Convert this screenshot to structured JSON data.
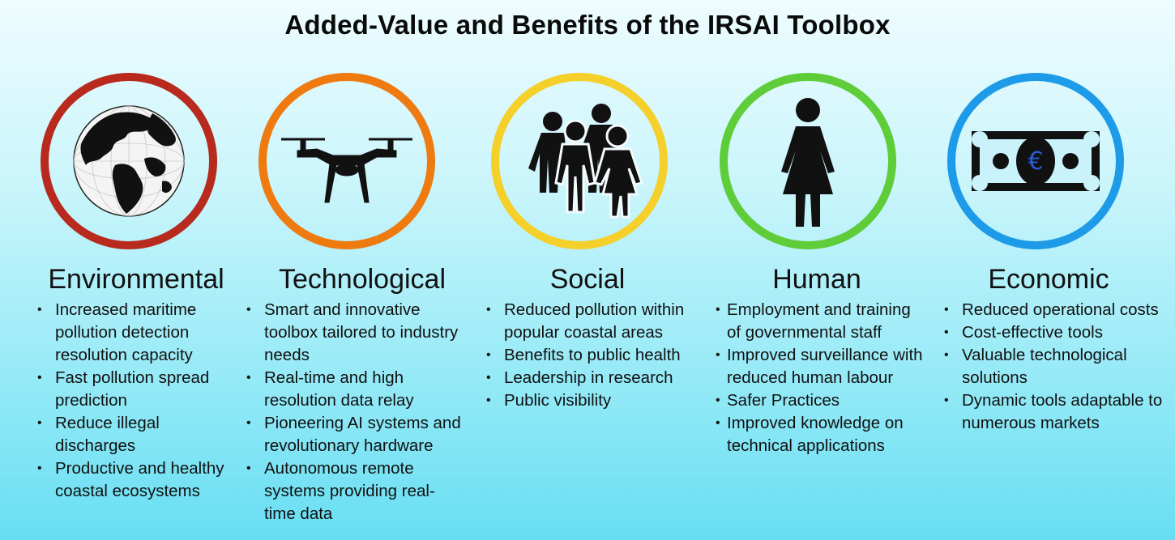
{
  "title": "Added-Value and Benefits of the IRSAI Toolbox",
  "colors": {
    "environmental": "#b82a1e",
    "technological": "#ee7a10",
    "social": "#f5cf2a",
    "human": "#5fcd3a",
    "economic": "#1d9be8",
    "euro_symbol": "#2a5cd8"
  },
  "columns": [
    {
      "heading": "Environmental",
      "icon": "globe-icon",
      "items": [
        "Increased maritime pollution detection resolution capacity",
        "Fast pollution spread prediction",
        "Reduce illegal discharges",
        "Productive and healthy coastal ecosystems"
      ]
    },
    {
      "heading": "Technological",
      "icon": "drone-icon",
      "items": [
        "Smart and innovative toolbox tailored to industry needs",
        "Real-time and high resolution data relay",
        "Pioneering AI systems and revolutionary hardware",
        "Autonomous remote systems providing real-time data"
      ]
    },
    {
      "heading": "Social",
      "icon": "people-group-icon",
      "items": [
        "Reduced pollution within popular coastal areas",
        "Benefits to public health",
        "Leadership in research",
        "Public visibility"
      ]
    },
    {
      "heading": "Human",
      "icon": "person-icon",
      "items": [
        "Employment and training of governmental staff",
        "Improved surveillance with reduced human labour",
        "Safer Practices",
        "Improved knowledge on technical applications"
      ]
    },
    {
      "heading": "Economic",
      "icon": "banknote-icon",
      "euro": "€",
      "items": [
        "Reduced operational costs",
        "Cost-effective tools",
        "Valuable technological solutions",
        "Dynamic tools adaptable to numerous markets"
      ]
    }
  ]
}
